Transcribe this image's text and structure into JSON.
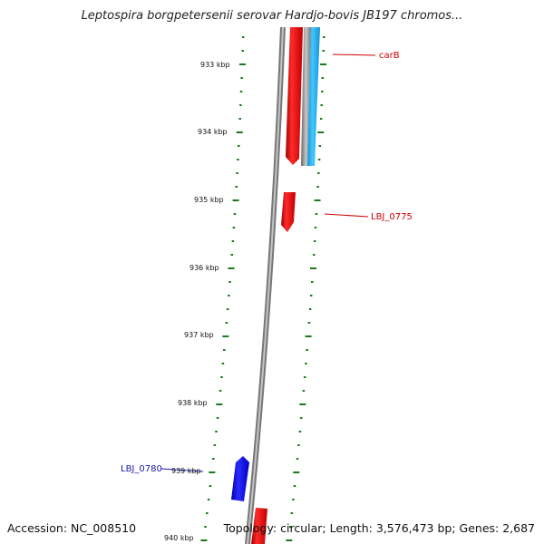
{
  "title": "Leptospira borgpetersenii serovar Hardjo-bovis JB197 chromos...",
  "footer": {
    "accession": "Accession: NC_008510",
    "summary": "Topology: circular; Length: 3,576,473 bp; Genes: 2,687"
  },
  "ruler": {
    "labels": [
      "933 kbp",
      "934 kbp",
      "935 kbp",
      "936 kbp",
      "937 kbp",
      "938 kbp",
      "939 kbp",
      "940 kbp"
    ]
  },
  "genes": [
    {
      "label": "carB",
      "strand": "forward",
      "color": "#e01010"
    },
    {
      "label": "LBJ_0775",
      "strand": "forward",
      "color": "#e01010"
    },
    {
      "label": "LBJ_0780",
      "strand": "reverse",
      "color": "#1010e0"
    }
  ],
  "colors": {
    "ruler": "#1a7a1a",
    "backbone": "#888888",
    "forward_gene": "#e01010",
    "reverse_gene": "#1010e0",
    "cyan_gene": "#22aaee",
    "forward_label": "#cc0000",
    "reverse_label": "#1a1aaa"
  }
}
